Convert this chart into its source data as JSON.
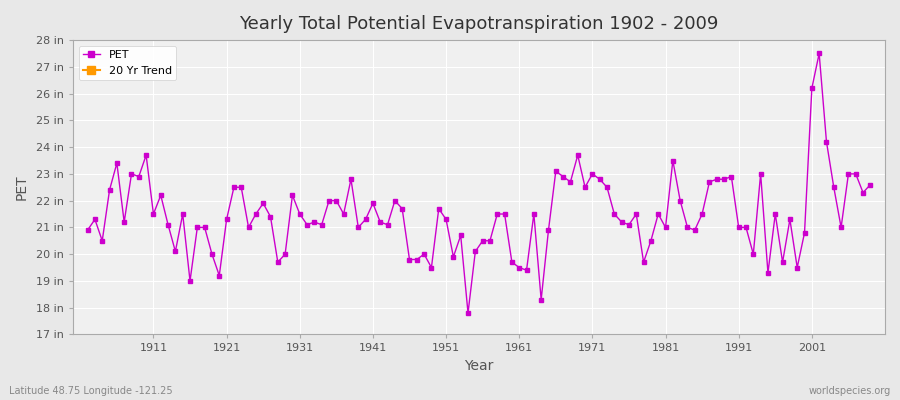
{
  "title": "Yearly Total Potential Evapotranspiration 1902 - 2009",
  "xlabel": "Year",
  "ylabel": "PET",
  "bottom_left": "Latitude 48.75 Longitude -121.25",
  "bottom_right": "worldspecies.org",
  "line_color": "#CC00CC",
  "trend_color": "#FF9900",
  "background_color": "#E8E8E8",
  "plot_bg_color": "#F0F0F0",
  "grid_color": "#FFFFFF",
  "ylim": [
    17,
    28
  ],
  "ytick_labels": [
    "17 in",
    "18 in",
    "19 in",
    "20 in",
    "21 in",
    "22 in",
    "23 in",
    "24 in",
    "25 in",
    "26 in",
    "27 in",
    "28 in"
  ],
  "ytick_values": [
    17,
    18,
    19,
    20,
    21,
    22,
    23,
    24,
    25,
    26,
    27,
    28
  ],
  "xtick_values": [
    1911,
    1921,
    1931,
    1941,
    1951,
    1961,
    1971,
    1981,
    1991,
    2001
  ],
  "years": [
    1902,
    1903,
    1904,
    1905,
    1906,
    1907,
    1908,
    1909,
    1910,
    1911,
    1912,
    1913,
    1914,
    1915,
    1916,
    1917,
    1918,
    1919,
    1920,
    1921,
    1922,
    1923,
    1924,
    1925,
    1926,
    1927,
    1928,
    1929,
    1930,
    1931,
    1932,
    1933,
    1934,
    1935,
    1936,
    1937,
    1938,
    1939,
    1940,
    1941,
    1942,
    1943,
    1944,
    1945,
    1946,
    1947,
    1948,
    1949,
    1950,
    1951,
    1952,
    1953,
    1954,
    1955,
    1956,
    1957,
    1958,
    1959,
    1960,
    1961,
    1962,
    1963,
    1964,
    1965,
    1966,
    1967,
    1968,
    1969,
    1970,
    1971,
    1972,
    1973,
    1974,
    1975,
    1976,
    1977,
    1978,
    1979,
    1980,
    1981,
    1982,
    1983,
    1984,
    1985,
    1986,
    1987,
    1988,
    1989,
    1990,
    1991,
    1992,
    1993,
    1994,
    1995,
    1996,
    1997,
    1998,
    1999,
    2000,
    2001,
    2002,
    2003,
    2004,
    2005,
    2006,
    2007,
    2008,
    2009
  ],
  "pet": [
    20.9,
    21.3,
    20.5,
    22.4,
    23.4,
    21.2,
    23.0,
    22.9,
    23.7,
    21.5,
    22.2,
    21.1,
    20.1,
    21.5,
    19.0,
    21.0,
    21.0,
    20.0,
    19.2,
    21.3,
    22.5,
    22.5,
    21.0,
    21.5,
    21.9,
    21.4,
    19.7,
    20.0,
    22.2,
    21.5,
    21.1,
    21.2,
    21.1,
    22.0,
    22.0,
    21.5,
    22.8,
    21.0,
    21.3,
    21.9,
    21.2,
    21.1,
    22.0,
    21.7,
    19.8,
    19.8,
    20.0,
    19.5,
    21.7,
    21.3,
    19.9,
    20.7,
    17.8,
    20.1,
    20.5,
    20.5,
    21.5,
    21.5,
    19.7,
    19.5,
    19.4,
    21.5,
    18.3,
    20.9,
    23.1,
    22.9,
    22.7,
    23.7,
    22.5,
    23.0,
    22.8,
    22.5,
    21.5,
    21.2,
    21.1,
    21.5,
    19.7,
    20.5,
    21.5,
    21.0,
    23.5,
    22.0,
    21.0,
    20.9,
    21.5,
    22.7,
    22.8,
    22.8,
    22.9,
    21.0,
    21.0,
    20.0,
    23.0,
    19.3,
    21.5,
    19.7,
    21.3,
    19.5,
    20.8,
    26.2,
    27.5,
    24.2,
    22.5,
    21.0,
    23.0,
    23.0,
    22.3,
    22.6
  ]
}
